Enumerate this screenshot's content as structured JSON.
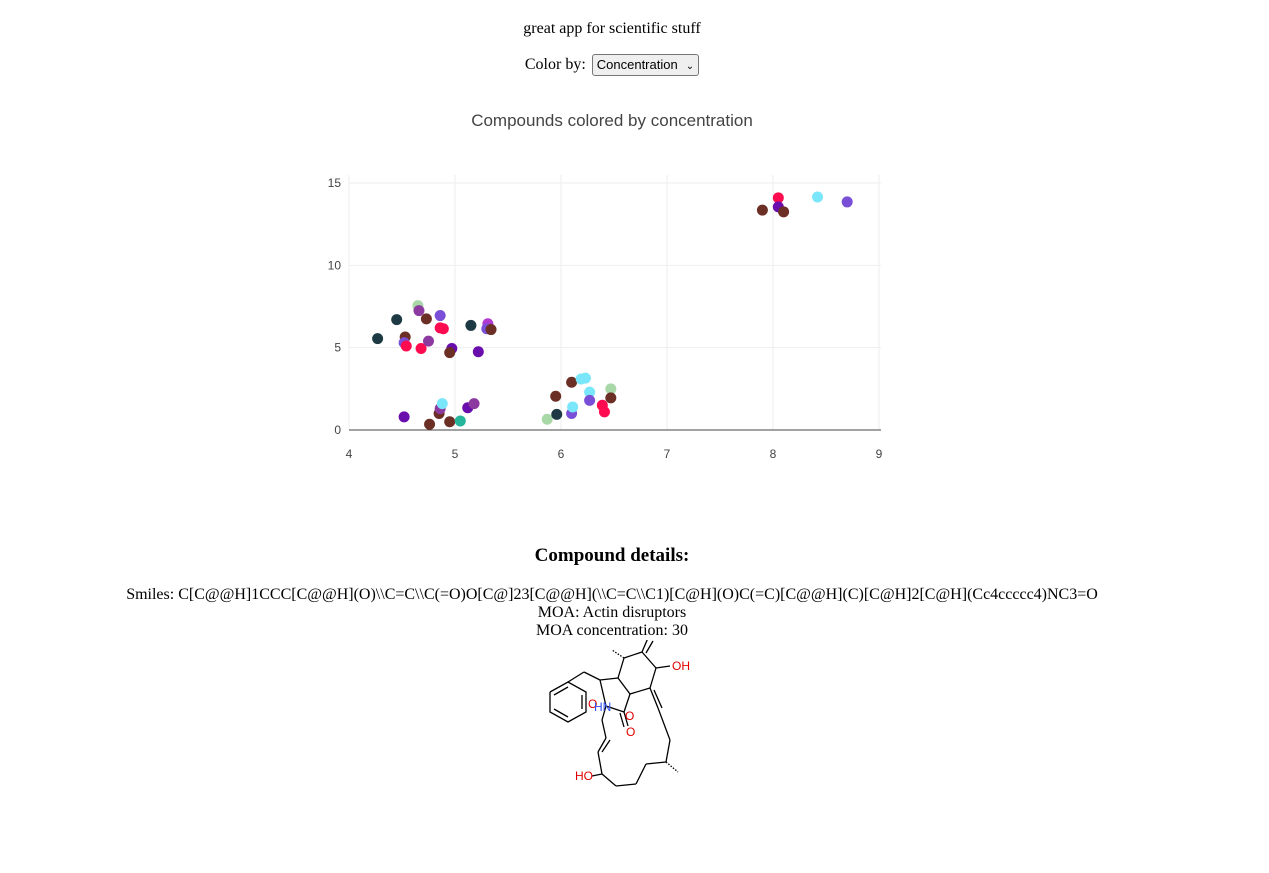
{
  "app": {
    "title": "great app for scientific stuff"
  },
  "controls": {
    "color_by_label": "Color by:",
    "color_by_selected": "Concentration"
  },
  "chart_data": {
    "type": "scatter",
    "title": "Compounds colored by concentration",
    "xlabel": "",
    "ylabel": "",
    "xlim": [
      4,
      9
    ],
    "ylim": [
      0,
      15
    ],
    "xticks": [
      4,
      5,
      6,
      7,
      8,
      9
    ],
    "yticks": [
      0,
      5,
      10,
      15
    ],
    "grid": true,
    "legend": "none",
    "points": [
      {
        "x": 4.27,
        "y": 5.55,
        "color": "#1d3a44"
      },
      {
        "x": 4.45,
        "y": 6.7,
        "color": "#1d3a44"
      },
      {
        "x": 4.53,
        "y": 5.65,
        "color": "#6b2f25"
      },
      {
        "x": 4.52,
        "y": 5.3,
        "color": "#7a4fd8"
      },
      {
        "x": 4.54,
        "y": 5.1,
        "color": "#ff0b4f"
      },
      {
        "x": 4.65,
        "y": 7.55,
        "color": "#a8d8a8"
      },
      {
        "x": 4.66,
        "y": 7.25,
        "color": "#8d3aa0"
      },
      {
        "x": 4.68,
        "y": 4.95,
        "color": "#ff0b4f"
      },
      {
        "x": 4.73,
        "y": 6.75,
        "color": "#6b2f25"
      },
      {
        "x": 4.75,
        "y": 5.4,
        "color": "#8d3aa0"
      },
      {
        "x": 4.86,
        "y": 6.95,
        "color": "#7a4fd8"
      },
      {
        "x": 4.86,
        "y": 6.2,
        "color": "#ff0b4f"
      },
      {
        "x": 4.89,
        "y": 6.15,
        "color": "#ff0b4f"
      },
      {
        "x": 4.97,
        "y": 4.95,
        "color": "#6a0dad"
      },
      {
        "x": 4.95,
        "y": 4.7,
        "color": "#6b2f25"
      },
      {
        "x": 5.15,
        "y": 6.35,
        "color": "#1d3a44"
      },
      {
        "x": 5.22,
        "y": 4.75,
        "color": "#6a0dad"
      },
      {
        "x": 5.31,
        "y": 6.45,
        "color": "#b23ad0"
      },
      {
        "x": 5.3,
        "y": 6.15,
        "color": "#7a4fd8"
      },
      {
        "x": 5.34,
        "y": 6.1,
        "color": "#6b2f25"
      },
      {
        "x": 4.52,
        "y": 0.8,
        "color": "#6a0dad"
      },
      {
        "x": 4.76,
        "y": 0.35,
        "color": "#6b2f25"
      },
      {
        "x": 4.85,
        "y": 1.0,
        "color": "#6b2f25"
      },
      {
        "x": 4.86,
        "y": 1.3,
        "color": "#8d3aa0"
      },
      {
        "x": 4.88,
        "y": 1.6,
        "color": "#7ae6fa"
      },
      {
        "x": 4.95,
        "y": 0.5,
        "color": "#6b2f25"
      },
      {
        "x": 5.05,
        "y": 0.55,
        "color": "#26b59a"
      },
      {
        "x": 5.12,
        "y": 1.35,
        "color": "#6a0dad"
      },
      {
        "x": 5.18,
        "y": 1.6,
        "color": "#8d3aa0"
      },
      {
        "x": 5.87,
        "y": 0.65,
        "color": "#a8d8a8"
      },
      {
        "x": 5.95,
        "y": 2.05,
        "color": "#6b2f25"
      },
      {
        "x": 5.96,
        "y": 0.95,
        "color": "#1d3a44"
      },
      {
        "x": 6.1,
        "y": 2.9,
        "color": "#6b2f25"
      },
      {
        "x": 6.1,
        "y": 1.0,
        "color": "#7a4fd8"
      },
      {
        "x": 6.11,
        "y": 1.4,
        "color": "#7ae6fa"
      },
      {
        "x": 6.19,
        "y": 3.1,
        "color": "#7ae6fa"
      },
      {
        "x": 6.23,
        "y": 3.15,
        "color": "#7ae6fa"
      },
      {
        "x": 6.27,
        "y": 2.3,
        "color": "#7ae6fa"
      },
      {
        "x": 6.27,
        "y": 1.8,
        "color": "#7a4fd8"
      },
      {
        "x": 6.39,
        "y": 1.5,
        "color": "#ff0b4f"
      },
      {
        "x": 6.41,
        "y": 1.1,
        "color": "#ff0b4f"
      },
      {
        "x": 6.47,
        "y": 2.5,
        "color": "#a8d8a8"
      },
      {
        "x": 6.47,
        "y": 1.95,
        "color": "#6b2f25"
      },
      {
        "x": 7.9,
        "y": 13.35,
        "color": "#6b2f25"
      },
      {
        "x": 8.05,
        "y": 14.1,
        "color": "#ff0b4f"
      },
      {
        "x": 8.05,
        "y": 13.55,
        "color": "#6a0dad"
      },
      {
        "x": 8.1,
        "y": 13.25,
        "color": "#6b2f25"
      },
      {
        "x": 8.42,
        "y": 14.15,
        "color": "#7ae6fa"
      },
      {
        "x": 8.7,
        "y": 13.85,
        "color": "#7a4fd8"
      }
    ]
  },
  "details": {
    "heading": "Compound details:",
    "smiles_line": "Smiles: C[C@@H]1CCC[C@@H](O)\\\\C=C\\\\C(=O)O[C@]23[C@@H](\\\\C=C\\\\C1)[C@H](O)C(=C)[C@@H](C)[C@H]2[C@H](Cc4ccccc4)NC3=O",
    "moa_line": "MOA: Actin disruptors",
    "moa_concentration_line": "MOA concentration: 30",
    "atom_labels": {
      "oh_top": "OH",
      "o_left": "O",
      "hn": "HN",
      "o_mid": "O",
      "o_lower": "O",
      "ho": "HO"
    },
    "atom_colors": {
      "oxygen": "#e00000",
      "nitrogen": "#3050f8"
    }
  }
}
